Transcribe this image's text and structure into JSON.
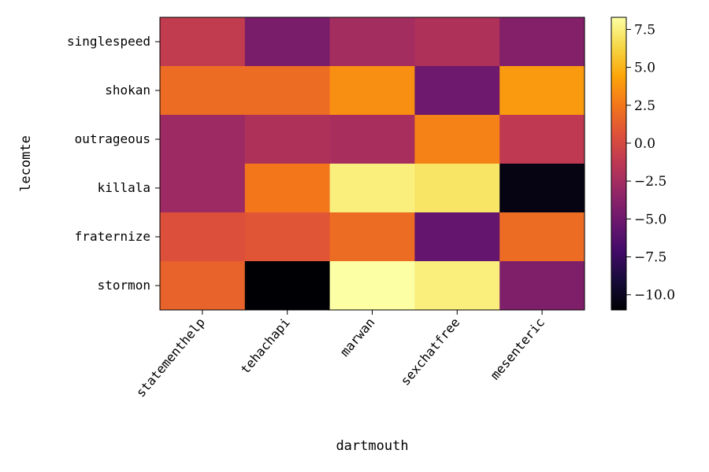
{
  "chart_data": {
    "type": "heatmap",
    "title": "",
    "xlabel": "dartmouth",
    "ylabel": "lecomte",
    "x_categories": [
      "statementhelp",
      "tehachapi",
      "marwan",
      "sexchatfree",
      "mesenteric"
    ],
    "y_categories": [
      "singlespeed",
      "shokan",
      "outrageous",
      "killala",
      "fraternize",
      "stormon"
    ],
    "values": [
      [
        -1.0,
        -4.5,
        -2.5,
        -2.0,
        -4.0
      ],
      [
        2.0,
        2.0,
        3.5,
        -5.0,
        4.0
      ],
      [
        -2.8,
        -2.0,
        -2.3,
        3.0,
        -1.2
      ],
      [
        -2.8,
        2.5,
        7.5,
        7.0,
        -10.5
      ],
      [
        0.5,
        0.8,
        2.0,
        -5.5,
        2.0
      ],
      [
        1.5,
        -11.0,
        8.3,
        7.5,
        -4.2
      ]
    ],
    "colormap": "inferno",
    "vmin": -11.0,
    "vmax": 8.3,
    "colorbar": {
      "ticks": [
        7.5,
        5.0,
        2.5,
        0.0,
        -2.5,
        -5.0,
        -7.5,
        -10.0
      ],
      "tick_labels": [
        "7.5",
        "5.0",
        "2.5",
        "0.0",
        "−2.5",
        "−5.0",
        "−7.5",
        "−10.0"
      ]
    }
  }
}
